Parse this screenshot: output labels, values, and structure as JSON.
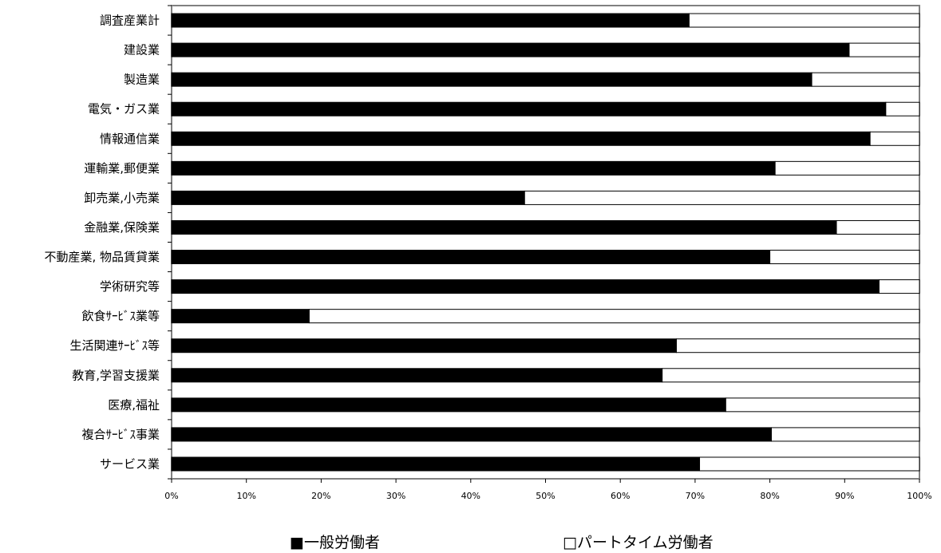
{
  "chart_data": {
    "type": "bar",
    "orientation": "horizontal",
    "stacked": "percent",
    "categories": [
      "調査産業計",
      "建設業",
      "製造業",
      "電気・ガス業",
      "情報通信業",
      "運輸業,郵便業",
      "卸売業,小売業",
      "金融業,保険業",
      "不動産業, 物品賃貸業",
      "学術研究等",
      "飲食ｻｰﾋﾞｽ業等",
      "生活関連ｻｰﾋﾞｽ等",
      "教育,学習支援業",
      "医療,福祉",
      "複合ｻｰﾋﾞｽ事業",
      "サービス業"
    ],
    "series": [
      {
        "name": "一般労働者",
        "color": "#000000",
        "values": [
          69.2,
          90.6,
          85.6,
          95.5,
          93.4,
          80.7,
          47.2,
          88.9,
          80.0,
          94.6,
          18.4,
          67.5,
          65.6,
          74.1,
          80.2,
          70.6
        ]
      },
      {
        "name": "パートタイム労働者",
        "color": "#ffffff",
        "values": [
          30.8,
          9.4,
          14.4,
          4.5,
          6.6,
          19.3,
          52.8,
          11.1,
          20.0,
          5.4,
          81.6,
          32.5,
          34.4,
          25.9,
          19.8,
          29.4
        ]
      }
    ],
    "xlim": [
      0,
      100
    ],
    "x_ticks": [
      "0%",
      "10%",
      "20%",
      "30%",
      "40%",
      "50%",
      "60%",
      "70%",
      "80%",
      "90%",
      "100%"
    ],
    "legend": {
      "placement": "bottom",
      "items": [
        {
          "marker": "■",
          "label": "一般労働者"
        },
        {
          "marker": "□",
          "label": "パートタイム労働者"
        }
      ]
    },
    "grid": false
  }
}
